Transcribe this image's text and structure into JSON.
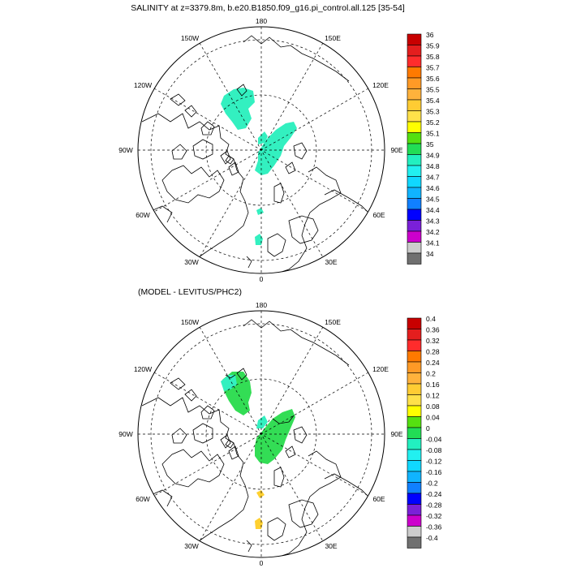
{
  "top_panel": {
    "title": "SALINITY at z=3379.8m, b.e20.B1850.f09_g16.pi_control.all.125 [35-54]",
    "lon_labels": {
      "top": "180",
      "upper_left": "150W",
      "upper_right": "150E",
      "left_upper": "120W",
      "right_upper": "120E",
      "left": "90W",
      "right": "90E",
      "left_lower": "60W",
      "right_lower": "60E",
      "lower_left": "30W",
      "lower_right": "30E",
      "bottom": "0"
    },
    "colorbar_labels": [
      "36",
      "35.9",
      "35.8",
      "35.7",
      "35.6",
      "35.5",
      "35.4",
      "35.3",
      "35.2",
      "35.1",
      "35",
      "34.9",
      "34.8",
      "34.7",
      "34.6",
      "34.5",
      "34.4",
      "34.3",
      "34.2",
      "34.1",
      "34"
    ],
    "colorbar_colors": [
      "#c80000",
      "#e41e1e",
      "#ff2c2c",
      "#ff7a00",
      "#ff9a26",
      "#ffb23c",
      "#ffcc33",
      "#ffe14a",
      "#ffff00",
      "#55e010",
      "#22dd55",
      "#22f0c0",
      "#22f0f0",
      "#10d8ff",
      "#10b4ff",
      "#1080ff",
      "#0000ff",
      "#7a20d8",
      "#cc00cc",
      "#cccccc",
      "#707070"
    ]
  },
  "bottom_panel": {
    "title": "(MODEL - LEVITUS/PHC2)",
    "lon_labels": {
      "top": "180",
      "upper_left": "150W",
      "upper_right": "150E",
      "left_upper": "120W",
      "right_upper": "120E",
      "left": "90W",
      "right": "90E",
      "left_lower": "60W",
      "right_lower": "60E",
      "lower_left": "30W",
      "lower_right": "30E",
      "bottom": "0"
    },
    "colorbar_labels": [
      "0.4",
      "0.36",
      "0.32",
      "0.28",
      "0.24",
      "0.2",
      "0.16",
      "0.12",
      "0.08",
      "0.04",
      "0",
      "-0.04",
      "-0.08",
      "-0.12",
      "-0.16",
      "-0.2",
      "-0.24",
      "-0.28",
      "-0.32",
      "-0.36",
      "-0.4"
    ],
    "colorbar_colors": [
      "#c80000",
      "#e41e1e",
      "#ff2c2c",
      "#ff7a00",
      "#ff9a26",
      "#ffb23c",
      "#ffcc33",
      "#ffe14a",
      "#ffff00",
      "#55e010",
      "#22dd55",
      "#22f0c0",
      "#22f0f0",
      "#10d8ff",
      "#10b4ff",
      "#1080ff",
      "#0000ff",
      "#7a20d8",
      "#cc00cc",
      "#cccccc",
      "#707070"
    ]
  },
  "colors": {
    "teal_patch": "#33f0c0",
    "green_patch": "#33dd55",
    "yellow_patch": "#ffd030",
    "coast": "#000000"
  }
}
